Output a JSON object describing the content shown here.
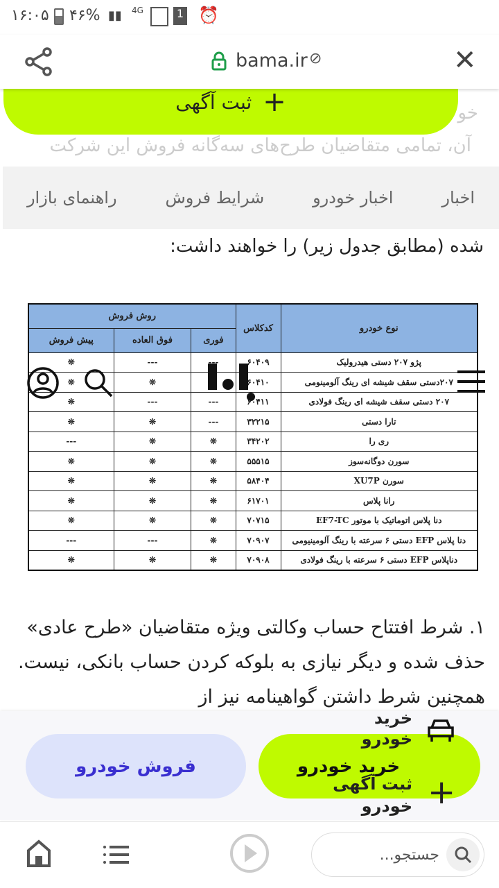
{
  "status": {
    "time": "۱۶:۰۵",
    "battery": "۴۶%",
    "network": "4G",
    "sim": "1"
  },
  "browser": {
    "domain": "bama.ir"
  },
  "top_cta": {
    "label": "ثبت آگهی"
  },
  "faded_text": {
    "line1": "آن، تمامی متقاضیان طرح‌های سه‌گانه فروش این شرکت",
    "line0": "خو"
  },
  "tabs": [
    "اخبار",
    "اخبار خودرو",
    "شرایط فروش",
    "راهنمای بازار"
  ],
  "intro": "شده (مطابق جدول زیر) را خواهند داشت:",
  "table": {
    "headers": {
      "type": "نوع خودرو",
      "code": "کدکلاس",
      "method": "روش فروش",
      "immediate": "فوری",
      "extraordinary": "فوق العاده",
      "presale": "پیش فروش"
    },
    "rows": [
      {
        "type": "پژو ۲۰۷ دستی هیدرولیک",
        "code": "۶۰۴۰۹",
        "immediate": "---",
        "extraordinary": "---",
        "presale": "❊"
      },
      {
        "type": "۲۰۷دستی سقف شیشه ای رینگ آلومینومی",
        "code": "۶۰۴۱۰",
        "immediate": "❊",
        "extraordinary": "❊",
        "presale": "❊"
      },
      {
        "type": "۲۰۷ دستی سقف شیشه ای رینگ فولادی",
        "code": "۶۰۴۱۱",
        "immediate": "---",
        "extraordinary": "---",
        "presale": "❊"
      },
      {
        "type": "تارا دستی",
        "code": "۳۲۲۱۵",
        "immediate": "---",
        "extraordinary": "❊",
        "presale": "❊"
      },
      {
        "type": "ری را",
        "code": "۳۴۲۰۲",
        "immediate": "❊",
        "extraordinary": "❊",
        "presale": "---"
      },
      {
        "type": "سورن دوگانه‌سوز",
        "code": "۵۵۵۱۵",
        "immediate": "❊",
        "extraordinary": "❊",
        "presale": "❊"
      },
      {
        "type": "سورن XU7P",
        "code": "۵۸۴۰۴",
        "immediate": "❊",
        "extraordinary": "❊",
        "presale": "❊"
      },
      {
        "type": "رانا پلاس",
        "code": "۶۱۷۰۱",
        "immediate": "❊",
        "extraordinary": "❊",
        "presale": "❊"
      },
      {
        "type": "دنا پلاس اتوماتیک با موتور EF7-TC",
        "code": "۷۰۷۱۵",
        "immediate": "❊",
        "extraordinary": "❊",
        "presale": "❊"
      },
      {
        "type": "دنا پلاس EFP دستی ۶ سرعته با رینگ آلومینیومی",
        "code": "۷۰۹۰۷",
        "immediate": "❊",
        "extraordinary": "---",
        "presale": "---"
      },
      {
        "type": "دناپلاس EFP دستی ۶ سرعته با رینگ فولادی",
        "code": "۷۰۹۰۸",
        "immediate": "❊",
        "extraordinary": "❊",
        "presale": "❊"
      }
    ]
  },
  "paragraph": "۱. شرط افتتاح حساب وکالتی ویژه متقاضیان «طرح عادی» حذف شده و دیگر نیازی به بلوکه کردن حساب بانکی، نیست. همچنین شرط داشتن گواهینامه نیز از",
  "bottom": {
    "sell_label": "فروش خودرو",
    "buy_label": "خرید خودرو",
    "buy_overlay_top": "خرید خودرو",
    "post_ad": "ثبت آگهی",
    "post_ad_sub": "خودرو"
  },
  "nav": {
    "search_placeholder": "جستجو..."
  },
  "colors": {
    "accent": "#bffa00",
    "sell_bg": "#dde3fb",
    "sell_text": "#3a2fd0",
    "table_header": "#8db3e2",
    "lock": "#1e9e4a"
  }
}
